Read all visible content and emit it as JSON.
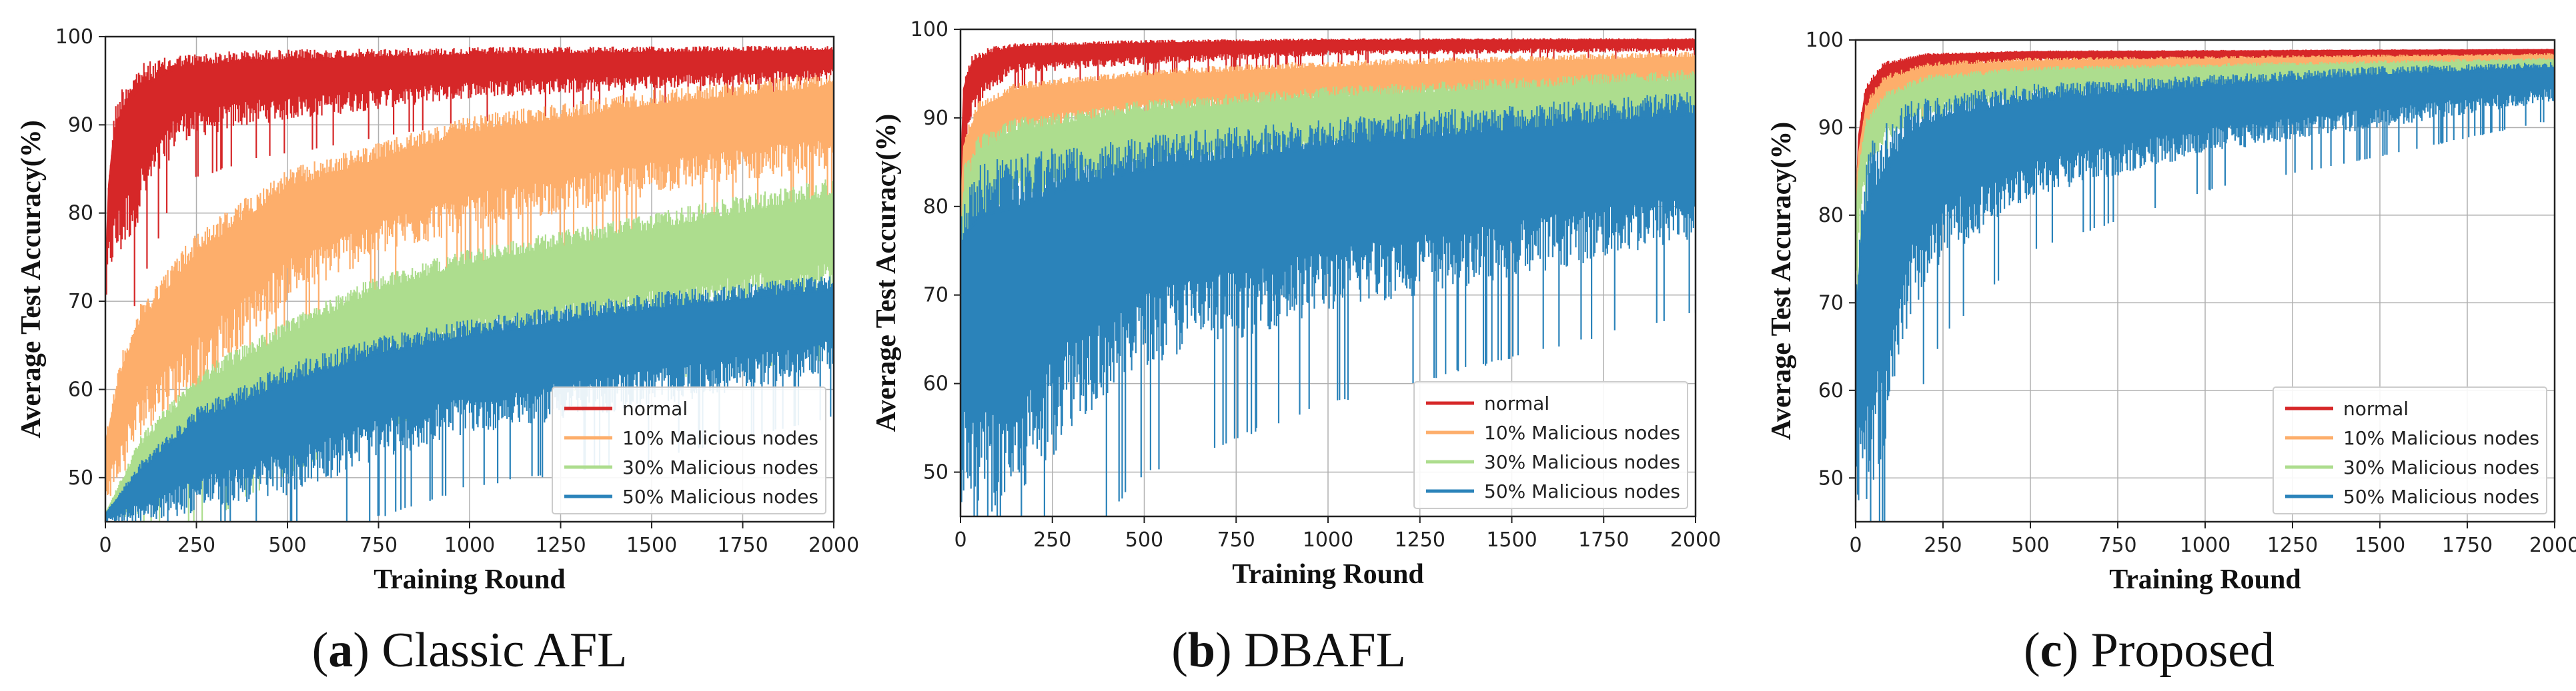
{
  "colors": {
    "normal": "#d62728",
    "m10": "#fdae6b",
    "m30": "#addd8e",
    "m50": "#2b83ba",
    "grid": "#b0b0b0",
    "axis": "#222222"
  },
  "chart_data": [
    {
      "type": "line",
      "caption_letter": "a",
      "caption_text": "Classic AFL",
      "xlabel": "Training Round",
      "ylabel": "Average Test Accuracy(%)",
      "xlim": [
        0,
        2000
      ],
      "ylim": [
        45,
        100
      ],
      "xticks": [
        "0",
        "250",
        "500",
        "750",
        "1000",
        "1250",
        "1500",
        "1750",
        "2000"
      ],
      "yticks": [
        "50",
        "60",
        "70",
        "80",
        "90",
        "100"
      ],
      "legend_position": "lower-right",
      "series": [
        {
          "name": "normal",
          "color_key": "normal",
          "x": [
            0,
            10,
            25,
            50,
            100,
            200,
            400,
            1000,
            2000
          ],
          "upper": [
            72,
            85,
            92,
            95,
            97,
            98,
            98.5,
            98.8,
            99
          ],
          "lower": [
            72,
            73,
            74,
            75,
            80,
            88,
            90,
            93,
            95
          ]
        },
        {
          "name": "10% Malicious nodes",
          "color_key": "m10",
          "x": [
            0,
            50,
            100,
            250,
            500,
            750,
            1000,
            1500,
            2000
          ],
          "upper": [
            55,
            65,
            70,
            78,
            85,
            88,
            91,
            94,
            96
          ],
          "lower": [
            47,
            50,
            55,
            60,
            70,
            75,
            78,
            82,
            85
          ]
        },
        {
          "name": "30% Malicious nodes",
          "color_key": "m30",
          "x": [
            0,
            100,
            250,
            500,
            750,
            1000,
            1500,
            2000
          ],
          "upper": [
            46,
            55,
            62,
            68,
            73,
            76,
            80,
            84
          ],
          "lower": [
            45,
            46,
            50,
            56,
            61,
            64,
            67,
            70
          ]
        },
        {
          "name": "50% Malicious nodes",
          "color_key": "m50",
          "x": [
            0,
            100,
            250,
            500,
            750,
            1000,
            1500,
            2000
          ],
          "upper": [
            46,
            52,
            58,
            63,
            66,
            68,
            71,
            73
          ],
          "lower": [
            45,
            45,
            46,
            48,
            52,
            55,
            58,
            62
          ]
        }
      ]
    },
    {
      "type": "line",
      "caption_letter": "b",
      "caption_text": "DBAFL",
      "xlabel": "Training Round",
      "ylabel": "Average Test Accuracy(%)",
      "xlim": [
        0,
        2000
      ],
      "ylim": [
        45,
        100
      ],
      "xticks": [
        "0",
        "250",
        "500",
        "750",
        "1000",
        "1250",
        "1500",
        "1750",
        "2000"
      ],
      "yticks": [
        "50",
        "60",
        "70",
        "80",
        "90",
        "100"
      ],
      "legend_position": "lower-right",
      "series": [
        {
          "name": "normal",
          "color_key": "normal",
          "x": [
            0,
            10,
            30,
            80,
            150,
            500,
            1000,
            2000
          ],
          "upper": [
            85,
            95,
            97,
            98,
            98.5,
            98.8,
            99,
            99
          ],
          "lower": [
            67,
            84,
            90,
            93,
            95,
            96,
            97,
            97.5
          ]
        },
        {
          "name": "10% Malicious nodes",
          "color_key": "m10",
          "x": [
            0,
            10,
            50,
            150,
            500,
            1000,
            1500,
            2000
          ],
          "upper": [
            80,
            88,
            92,
            94,
            95.5,
            96.5,
            97,
            97.5
          ],
          "lower": [
            70,
            80,
            85,
            88,
            90,
            91,
            92,
            93
          ]
        },
        {
          "name": "30% Malicious nodes",
          "color_key": "m30",
          "x": [
            0,
            10,
            50,
            150,
            500,
            1000,
            1500,
            2000
          ],
          "upper": [
            80,
            85,
            88,
            90,
            92,
            93.5,
            94.5,
            95.5
          ],
          "lower": [
            48,
            62,
            75,
            80,
            83,
            85,
            86,
            87
          ]
        },
        {
          "name": "50% Malicious nodes",
          "color_key": "m50",
          "x": [
            0,
            20,
            60,
            150,
            300,
            500,
            1000,
            1500,
            2000
          ],
          "upper": [
            80,
            83,
            85,
            86,
            87,
            88,
            90,
            91.5,
            93
          ],
          "lower": [
            45,
            45,
            45,
            45,
            55,
            62,
            68,
            72,
            76
          ]
        }
      ]
    },
    {
      "type": "line",
      "caption_letter": "c",
      "caption_text": "Proposed",
      "xlabel": "Training Round",
      "ylabel": "Average Test Accuracy(%)",
      "xlim": [
        0,
        2000
      ],
      "ylim": [
        45,
        100
      ],
      "xticks": [
        "0",
        "250",
        "500",
        "750",
        "1000",
        "1250",
        "1500",
        "1750",
        "2000"
      ],
      "yticks": [
        "50",
        "60",
        "70",
        "80",
        "90",
        "100"
      ],
      "legend_position": "lower-right",
      "series": [
        {
          "name": "normal",
          "color_key": "normal",
          "x": [
            0,
            10,
            30,
            80,
            200,
            500,
            2000
          ],
          "upper": [
            80,
            90,
            95,
            97.5,
            98.5,
            98.8,
            99
          ],
          "lower": [
            75,
            84,
            90,
            94,
            96.5,
            97.5,
            98
          ]
        },
        {
          "name": "10% Malicious nodes",
          "color_key": "m10",
          "x": [
            0,
            10,
            30,
            80,
            200,
            500,
            2000
          ],
          "upper": [
            82,
            88,
            93,
            96,
            97.5,
            98,
            98.5
          ],
          "lower": [
            75,
            82,
            87,
            91,
            93,
            95,
            96.5
          ]
        },
        {
          "name": "30% Malicious nodes",
          "color_key": "m30",
          "x": [
            0,
            10,
            30,
            80,
            200,
            500,
            2000
          ],
          "upper": [
            80,
            86,
            91,
            94,
            96,
            97,
            98
          ],
          "lower": [
            70,
            78,
            84,
            88,
            91,
            93,
            95.5
          ]
        },
        {
          "name": "50% Malicious nodes",
          "color_key": "m50",
          "x": [
            0,
            20,
            50,
            100,
            150,
            250,
            500,
            1000,
            1500,
            2000
          ],
          "upper": [
            70,
            85,
            89,
            91,
            93,
            94,
            95,
            96,
            97,
            97.5
          ],
          "lower": [
            45,
            45,
            47,
            55,
            68,
            75,
            82,
            87,
            90,
            93
          ]
        }
      ]
    }
  ]
}
